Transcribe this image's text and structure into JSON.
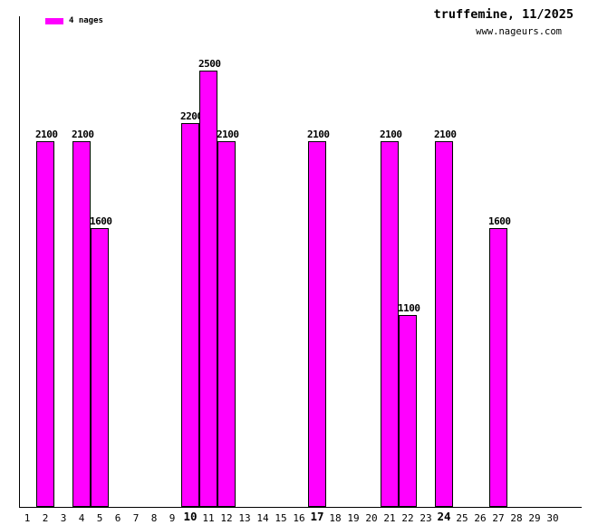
{
  "header": {
    "title": "truffemine, 11/2025",
    "website": "www.nageurs.com"
  },
  "legend": {
    "label": "4 nages",
    "color": "#FF00FF"
  },
  "chart_data": {
    "type": "bar",
    "title": "truffemine, 11/2025",
    "subtitle": "www.nageurs.com",
    "series_name": "4 nages",
    "bar_color": "#FF00FF",
    "bar_border_color": "#000000",
    "xlabel": "",
    "ylabel": "",
    "ylim": [
      0,
      2814
    ],
    "grid": false,
    "legend_position": "top-left",
    "categories": [
      1,
      2,
      3,
      4,
      5,
      6,
      7,
      8,
      9,
      10,
      11,
      12,
      13,
      14,
      15,
      16,
      17,
      18,
      19,
      20,
      21,
      22,
      23,
      24,
      25,
      26,
      27,
      28,
      29,
      30
    ],
    "bold_categories": [
      10,
      17,
      24
    ],
    "bars": [
      {
        "day": 2,
        "value": 2100
      },
      {
        "day": 4,
        "value": 2100
      },
      {
        "day": 5,
        "value": 1600
      },
      {
        "day": 10,
        "value": 2200
      },
      {
        "day": 11,
        "value": 2500
      },
      {
        "day": 12,
        "value": 2100
      },
      {
        "day": 17,
        "value": 2100
      },
      {
        "day": 21,
        "value": 2100
      },
      {
        "day": 22,
        "value": 1100
      },
      {
        "day": 24,
        "value": 2100
      },
      {
        "day": 27,
        "value": 1600
      }
    ]
  }
}
